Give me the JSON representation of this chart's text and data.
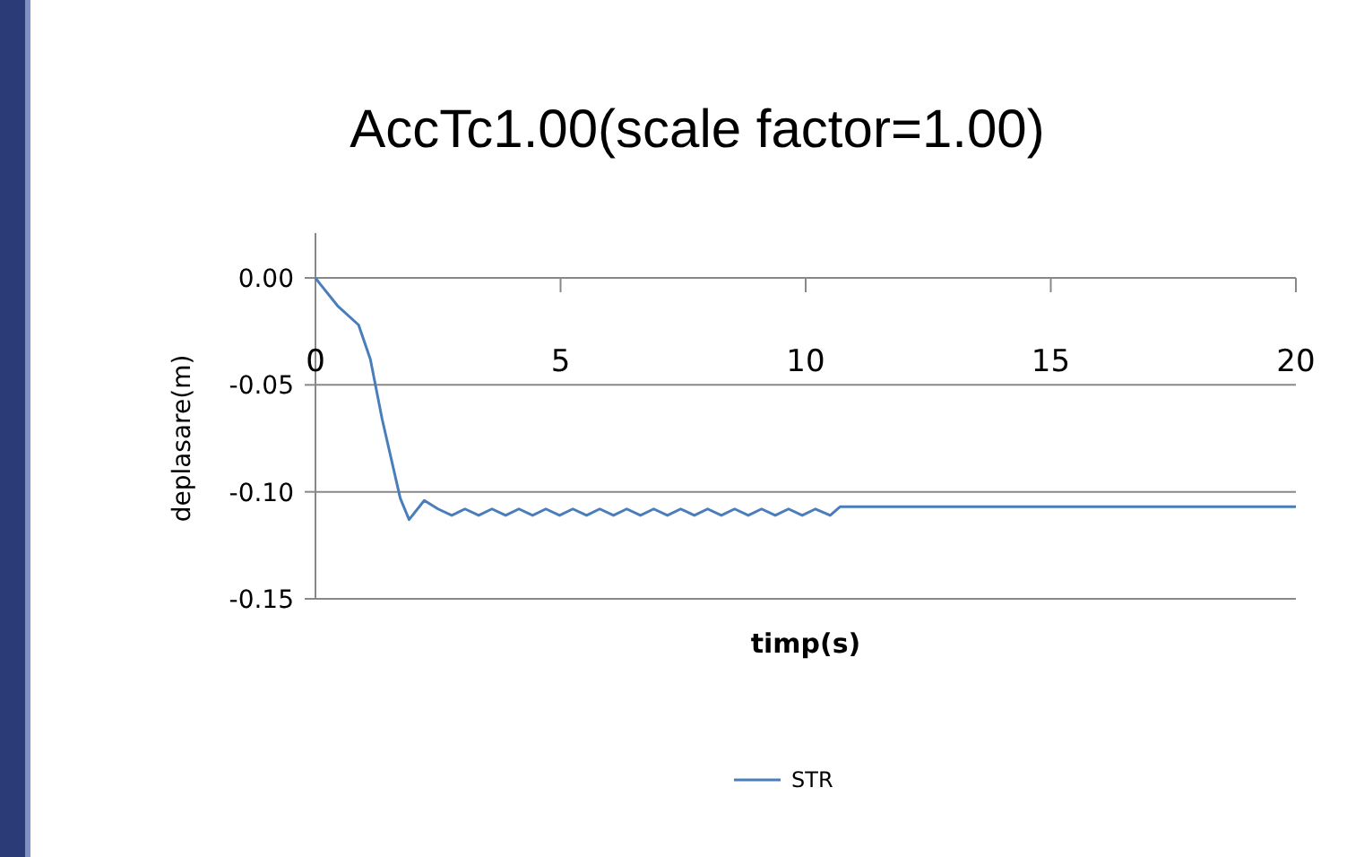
{
  "chart_data": {
    "type": "line",
    "title": "AccTc1.00(scale factor=1.00)",
    "xlabel": "timp(s)",
    "ylabel": "deplasare(m)",
    "x": [
      0,
      0.1,
      0.45,
      0.88,
      1.12,
      1.36,
      1.73,
      1.91,
      2.22,
      2.5,
      2.78,
      3.05,
      3.33,
      3.6,
      3.88,
      4.15,
      4.43,
      4.7,
      4.98,
      5.25,
      5.53,
      5.8,
      6.08,
      6.35,
      6.63,
      6.9,
      7.18,
      7.45,
      7.73,
      8.0,
      8.28,
      8.55,
      8.83,
      9.1,
      9.38,
      9.65,
      9.93,
      10.2,
      10.5,
      10.7,
      20
    ],
    "series": [
      {
        "name": "STR",
        "color": "#4a7ebb",
        "values": [
          0,
          -0.003,
          -0.013,
          -0.022,
          -0.038,
          -0.066,
          -0.103,
          -0.113,
          -0.104,
          -0.108,
          -0.111,
          -0.108,
          -0.111,
          -0.108,
          -0.111,
          -0.108,
          -0.111,
          -0.108,
          -0.111,
          -0.108,
          -0.111,
          -0.108,
          -0.111,
          -0.108,
          -0.111,
          -0.108,
          -0.111,
          -0.108,
          -0.111,
          -0.108,
          -0.111,
          -0.108,
          -0.111,
          -0.108,
          -0.111,
          -0.108,
          -0.111,
          -0.108,
          -0.111,
          -0.107,
          -0.107
        ]
      }
    ],
    "xlim": [
      0,
      20
    ],
    "xticks": [
      0,
      5,
      10,
      15,
      20
    ],
    "ylim": [
      -0.15,
      0
    ],
    "yticks": [
      {
        "value": 0,
        "label": "0.00"
      },
      {
        "value": -0.05,
        "label": "-0.05"
      },
      {
        "value": -0.1,
        "label": "-0.10"
      },
      {
        "value": -0.15,
        "label": "-0.15"
      }
    ],
    "grid": "y",
    "legend": "bottom",
    "marker": "none",
    "line_style": "solid"
  }
}
